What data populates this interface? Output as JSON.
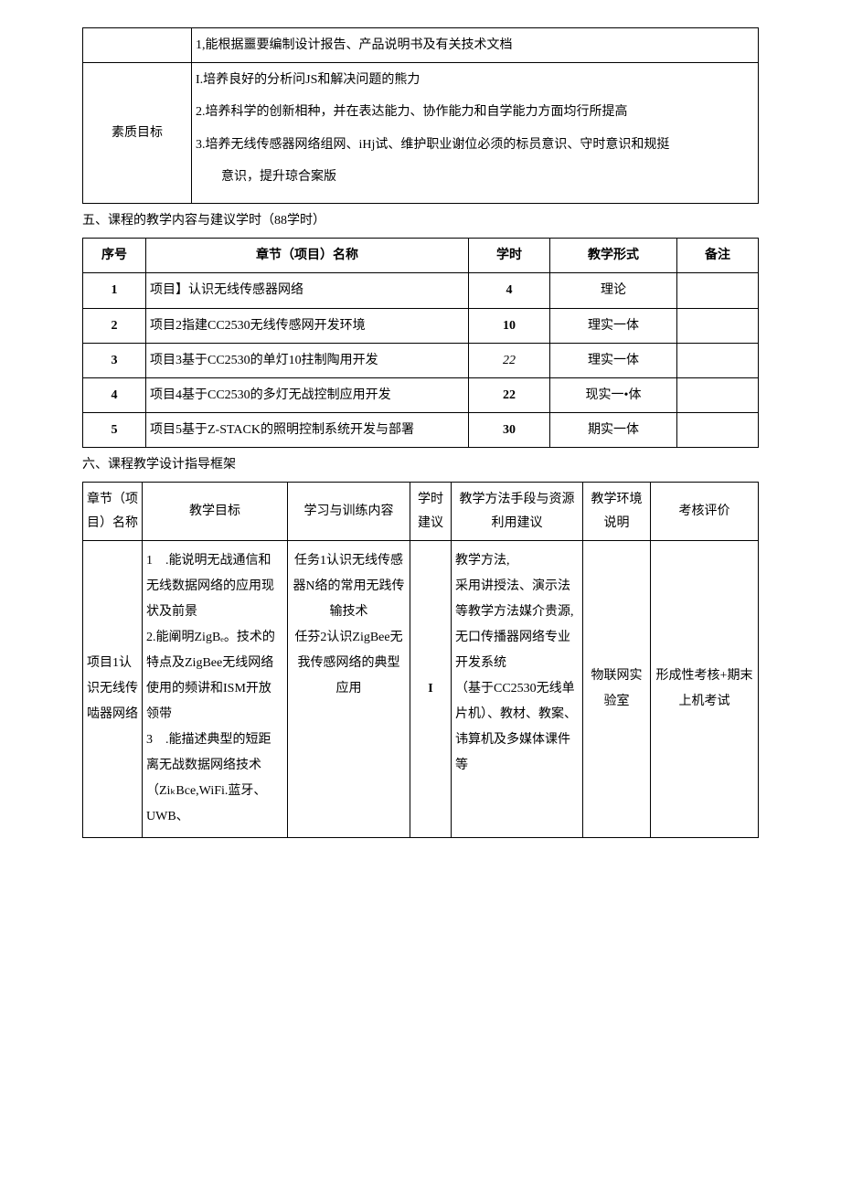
{
  "table1": {
    "row0_cell": "1,能根据噩要编制设计报告、产品说明书及有关技术文档",
    "row1_label": "素质目标",
    "row1_content": [
      "I.培养良好的分析问JS和解决问题的熊力",
      "2.培养科学的创新相种，并在表达能力、协作能力和自学能力方面均行所提高",
      "3.培养无线传感器网络组网、iHj试、维护职业谢位必须的标员意识、守时意识和规挺",
      "意识，提升琼合案版"
    ]
  },
  "heading5": "五、课程的教学内容与建议学时（88学时）",
  "table2": {
    "headers": [
      "序号",
      "章节（项目）名称",
      "学时",
      "教学形式",
      "备注"
    ],
    "rows": [
      {
        "num": "1",
        "name": "项目】认识无线传感器网络",
        "hours": "4",
        "form": "理论",
        "remark": "",
        "num_bold": true,
        "hours_bold": true
      },
      {
        "num": "2",
        "name": "项目2指建CC2530无线传感网开发环境",
        "hours": "10",
        "form": "理实一体",
        "remark": "",
        "num_bold": true,
        "hours_bold": true
      },
      {
        "num": "3",
        "name": "项目3基于CC2530的单灯10拄制陶用开发",
        "hours": "22",
        "form": "理实一体",
        "remark": "",
        "num_bold": true,
        "hours_italic": true
      },
      {
        "num": "4",
        "name": "项目4基于CC2530的多灯无战控制应用开发",
        "hours": "22",
        "form": "现实一•体",
        "remark": "",
        "num_bold": true,
        "hours_bold": true
      },
      {
        "num": "5",
        "name": "项目5基于Z-STACK的照明控制系统开发与部署",
        "hours": "30",
        "form": "期实一体",
        "remark": "",
        "num_bold": true,
        "hours_bold": true
      }
    ]
  },
  "heading6": "六、课程教学设计指导框架",
  "table3": {
    "headers": [
      "章节（项目）名称",
      "教学目标",
      "学习与训练内容",
      "学时建议",
      "教学方法手段与资源利用建议",
      "教学环境说明",
      "考核评价"
    ],
    "row": {
      "c1": "项目1认识无线传啮器网络",
      "c2": "1　.能说明无战通信和无线数据网络的应用现状及前景\n2.能阐明ZigBₑ。技术的特点及ZigBee无线网络使用的频讲和ISM开放领带\n3　.能描述典型的短距离无战数据网络技术（ZiₖBce,WiFi.蓝牙、UWB、",
      "c3": "任务1认识无线传感器N络的常用无践传输技术\n任芬2认识ZigBee无我传感网络的典型\n应用",
      "c4": "I",
      "c5": "教学方法,\n采用讲授法、演示法等教学方法媒介贵源,\n无口传播器网络专业开发系统\n（基于CC2530无线单片机）、教材、教案、讳算机及多媒体课件等",
      "c6": "物联网实验室",
      "c7": "形成性考核+期末上机考试"
    }
  }
}
